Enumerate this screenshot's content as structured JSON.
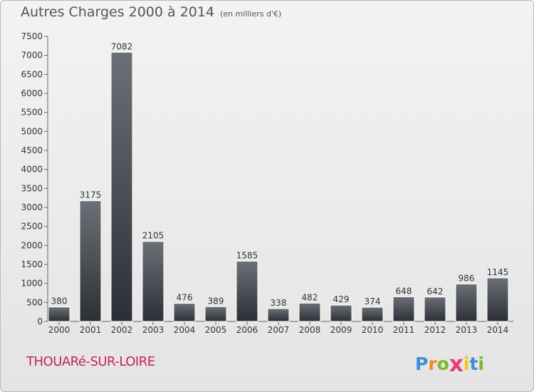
{
  "header": {
    "title": "Autres Charges 2000 à 2014",
    "unit": "(en milliers d'€)"
  },
  "footer": {
    "city": "THOUARé-SUR-LOIRE",
    "logo_letters": [
      "P",
      "r",
      "o",
      "x",
      "i",
      "t",
      "i"
    ],
    "logo_colors": [
      "#3b8fd6",
      "#f08a1c",
      "#7ab929",
      "#e83a7a",
      "#f5c31c",
      "#3b8fd6",
      "#7ab929"
    ]
  },
  "chart_data": {
    "type": "bar",
    "title": "Autres Charges 2000 à 2014",
    "subtitle": "(en milliers d'€)",
    "xlabel": "",
    "ylabel": "",
    "categories": [
      "2000",
      "2001",
      "2002",
      "2003",
      "2004",
      "2005",
      "2006",
      "2007",
      "2008",
      "2009",
      "2010",
      "2011",
      "2012",
      "2013",
      "2014"
    ],
    "values": [
      380,
      3175,
      7082,
      2105,
      476,
      389,
      1585,
      338,
      482,
      429,
      374,
      648,
      642,
      986,
      1145
    ],
    "ylim": [
      0,
      7500
    ],
    "yticks": [
      0,
      500,
      1000,
      1500,
      2000,
      2500,
      3000,
      3500,
      4000,
      4500,
      5000,
      5500,
      6000,
      6500,
      7000,
      7500
    ],
    "grid": false,
    "legend": "none",
    "bar_color": "#3d4249"
  }
}
